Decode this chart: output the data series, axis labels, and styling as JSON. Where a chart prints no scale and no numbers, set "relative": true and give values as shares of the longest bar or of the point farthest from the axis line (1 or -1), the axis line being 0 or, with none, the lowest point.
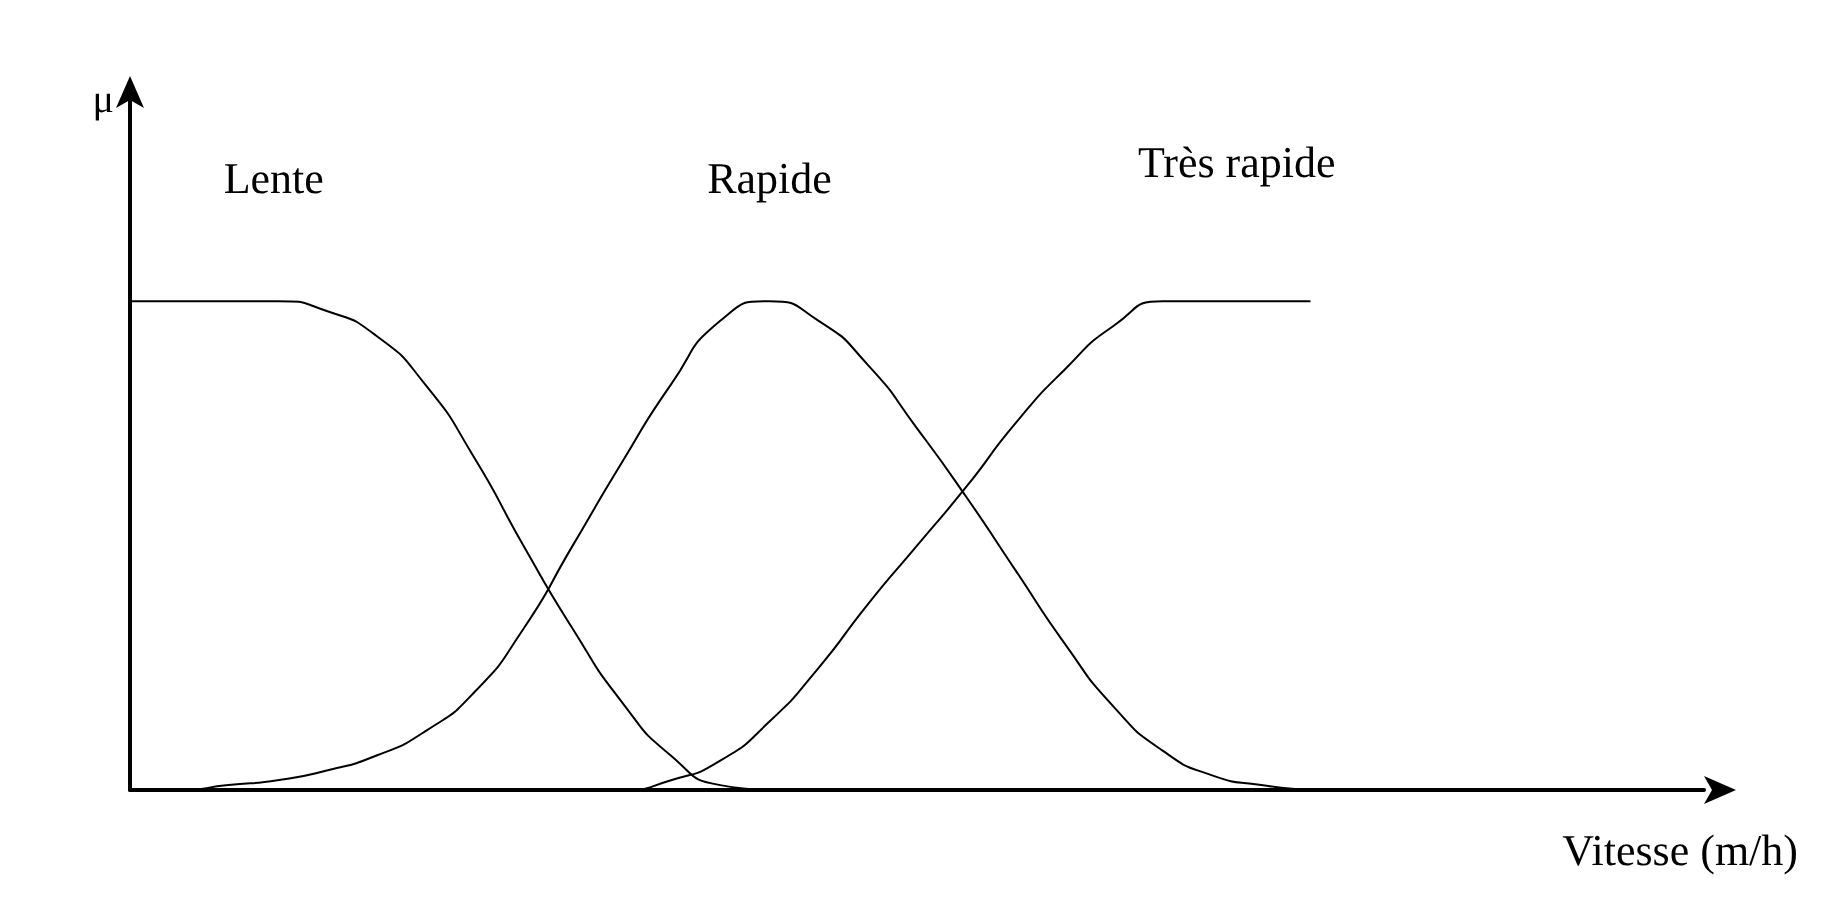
{
  "chart_data": {
    "type": "line",
    "relative": true,
    "xlabel": "Vitesse (m/h)",
    "ylabel": "μ",
    "categories": [
      null,
      null,
      null,
      null,
      null,
      null,
      null,
      null,
      null,
      null,
      null,
      null,
      null,
      null,
      null,
      null,
      null,
      null,
      null,
      null,
      null,
      null,
      null,
      null,
      null,
      null,
      null,
      null,
      null,
      null,
      null,
      null,
      null
    ],
    "marker": "none",
    "grid": false,
    "legend": false,
    "series": [
      {
        "name": "Lente",
        "color": "#000000",
        "values": [
          1,
          1,
          1,
          1,
          0.98,
          0.93,
          0.83,
          0.68,
          0.5,
          0.33,
          0.18,
          0.07,
          0.01,
          0,
          null,
          null,
          null,
          null,
          null,
          null,
          null,
          null,
          null,
          null,
          null,
          null,
          null,
          null,
          null,
          null,
          null,
          null,
          null
        ]
      },
      {
        "name": "Rapide",
        "color": "#000000",
        "values": [
          0,
          0,
          0.01,
          0.02,
          0.04,
          0.07,
          0.12,
          0.2,
          0.33,
          0.5,
          0.67,
          0.83,
          0.96,
          1,
          0.96,
          0.87,
          0.74,
          0.6,
          0.45,
          0.3,
          0.17,
          0.08,
          0.03,
          0.01,
          0,
          null,
          null,
          null,
          null,
          null,
          null,
          null,
          null
        ]
      },
      {
        "name": "Très rapide",
        "color": "#000000",
        "values": [
          0,
          0,
          0,
          0,
          0,
          0,
          0,
          0,
          0,
          0,
          0,
          0.02,
          0.06,
          0.14,
          0.25,
          0.38,
          0.5,
          0.62,
          0.75,
          0.86,
          0.95,
          1,
          1,
          1,
          1,
          null,
          null,
          null,
          null,
          null,
          null,
          null,
          null
        ]
      }
    ]
  }
}
